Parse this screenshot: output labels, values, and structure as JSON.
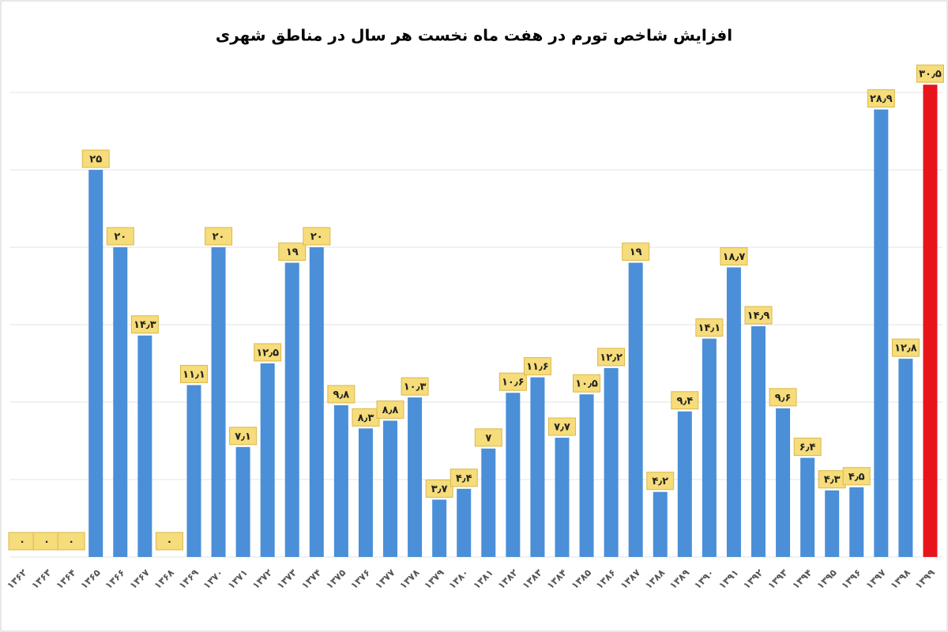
{
  "chart_data": {
    "type": "bar",
    "title": "افزایش شاخص تورم در هفت ماه نخست هر سال در مناطق شهری",
    "categories": [
      "۱۳۶۲",
      "۱۳۶۳",
      "۱۳۶۴",
      "۱۳۶۵",
      "۱۳۶۶",
      "۱۳۶۷",
      "۱۳۶۸",
      "۱۳۶۹",
      "۱۳۷۰",
      "۱۳۷۱",
      "۱۳۷۲",
      "۱۳۷۳",
      "۱۳۷۴",
      "۱۳۷۵",
      "۱۳۷۶",
      "۱۳۷۷",
      "۱۳۷۸",
      "۱۳۷۹",
      "۱۳۸۰",
      "۱۳۸۱",
      "۱۳۸۲",
      "۱۳۸۳",
      "۱۳۸۴",
      "۱۳۸۵",
      "۱۳۸۶",
      "۱۳۸۷",
      "۱۳۸۸",
      "۱۳۸۹",
      "۱۳۹۰",
      "۱۳۹۱",
      "۱۳۹۲",
      "۱۳۹۳",
      "۱۳۹۴",
      "۱۳۹۵",
      "۱۳۹۶",
      "۱۳۹۷",
      "۱۳۹۸",
      "۱۳۹۹"
    ],
    "values": [
      0,
      0,
      0,
      25,
      20,
      14.3,
      0,
      11.1,
      20,
      7.1,
      12.5,
      19,
      20,
      9.8,
      8.3,
      8.8,
      10.3,
      3.7,
      4.4,
      7,
      10.6,
      11.6,
      7.7,
      10.5,
      12.2,
      19,
      4.2,
      9.4,
      14.1,
      18.7,
      14.9,
      9.6,
      6.4,
      4.3,
      4.5,
      28.9,
      12.8,
      30.5
    ],
    "value_labels": [
      "۰",
      "۰",
      "۰",
      "۲۵",
      "۲۰",
      "۱۴٫۳",
      "۰",
      "۱۱٫۱",
      "۲۰",
      "۷٫۱",
      "۱۲٫۵",
      "۱۹",
      "۲۰",
      "۹٫۸",
      "۸٫۳",
      "۸٫۸",
      "۱۰٫۳",
      "۳٫۷",
      "۴٫۴",
      "۷",
      "۱۰٫۶",
      "۱۱٫۶",
      "۷٫۷",
      "۱۰٫۵",
      "۱۲٫۲",
      "۱۹",
      "۴٫۲",
      "۹٫۴",
      "۱۴٫۱",
      "۱۸٫۷",
      "۱۴٫۹",
      "۹٫۶",
      "۶٫۴",
      "۴٫۳",
      "۴٫۵",
      "۲۸٫۹",
      "۱۲٫۸",
      "۳۰٫۵"
    ],
    "colors": [
      "#4a8fd8",
      "#4a8fd8",
      "#4a8fd8",
      "#4a8fd8",
      "#4a8fd8",
      "#4a8fd8",
      "#4a8fd8",
      "#4a8fd8",
      "#4a8fd8",
      "#4a8fd8",
      "#4a8fd8",
      "#4a8fd8",
      "#4a8fd8",
      "#4a8fd8",
      "#4a8fd8",
      "#4a8fd8",
      "#4a8fd8",
      "#4a8fd8",
      "#4a8fd8",
      "#4a8fd8",
      "#4a8fd8",
      "#4a8fd8",
      "#4a8fd8",
      "#4a8fd8",
      "#4a8fd8",
      "#4a8fd8",
      "#4a8fd8",
      "#4a8fd8",
      "#4a8fd8",
      "#4a8fd8",
      "#4a8fd8",
      "#4a8fd8",
      "#4a8fd8",
      "#4a8fd8",
      "#4a8fd8",
      "#4a8fd8",
      "#4a8fd8",
      "#e8141b"
    ],
    "ylim": [
      0,
      31
    ],
    "yticks": [
      0,
      5,
      10,
      15,
      20,
      25,
      30
    ],
    "grid": true
  }
}
